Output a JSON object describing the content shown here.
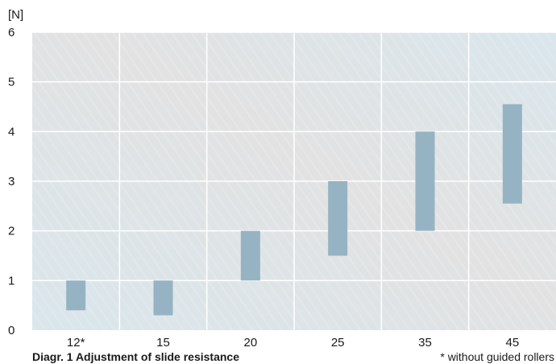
{
  "chart_data": {
    "type": "bar",
    "subtype": "floating-range",
    "ylabel": "[N]",
    "ylim": [
      0,
      6
    ],
    "yticks": [
      "0",
      "1",
      "2",
      "3",
      "4",
      "5",
      "6"
    ],
    "categories": [
      "12*",
      "15",
      "20",
      "25",
      "35",
      "45"
    ],
    "ranges": [
      [
        0.4,
        1.0
      ],
      [
        0.3,
        1.0
      ],
      [
        1.0,
        2.0
      ],
      [
        1.5,
        3.0
      ],
      [
        2.0,
        4.0
      ],
      [
        2.55,
        4.55
      ]
    ],
    "grid": true,
    "colors": {
      "bar": "#95b3c3",
      "plot_bg_start": "#d9e6ec",
      "plot_bg_end": "#e2e2e2",
      "grid": "#ffffff"
    }
  },
  "caption": "Diagr. 1 Adjustment of slide resistance",
  "footnote": "* without guided rollers"
}
